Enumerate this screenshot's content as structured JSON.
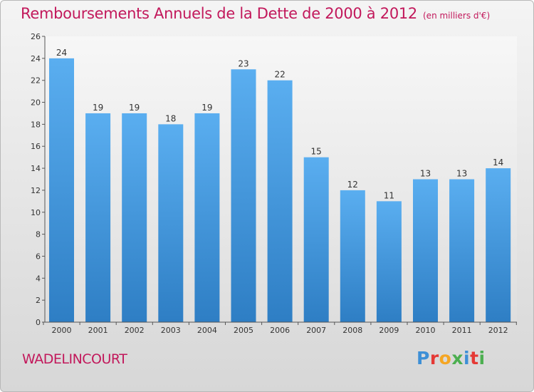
{
  "title": "Remboursements Annuels de la Dette de 2000 à 2012",
  "unit_note": "(en milliers d'€)",
  "location": "WADELINCOURT",
  "logo": {
    "letters": [
      "P",
      "r",
      "o",
      "x",
      "i",
      "t",
      "i"
    ],
    "colors": [
      "#3d8fd6",
      "#e53935",
      "#f5a623",
      "#4caf50",
      "#3d8fd6",
      "#e53935",
      "#4caf50"
    ]
  },
  "chart_data": {
    "type": "bar",
    "categories": [
      "2000",
      "2001",
      "2002",
      "2003",
      "2004",
      "2005",
      "2006",
      "2007",
      "2008",
      "2009",
      "2010",
      "2011",
      "2012"
    ],
    "values": [
      24,
      19,
      19,
      18,
      19,
      23,
      22,
      15,
      12,
      11,
      13,
      13,
      14
    ],
    "ylim": [
      0,
      26
    ],
    "yticks": [
      0,
      2,
      4,
      6,
      8,
      10,
      12,
      14,
      16,
      18,
      20,
      22,
      24,
      26
    ],
    "grid": false,
    "bar_color": "#4a9ee0"
  }
}
